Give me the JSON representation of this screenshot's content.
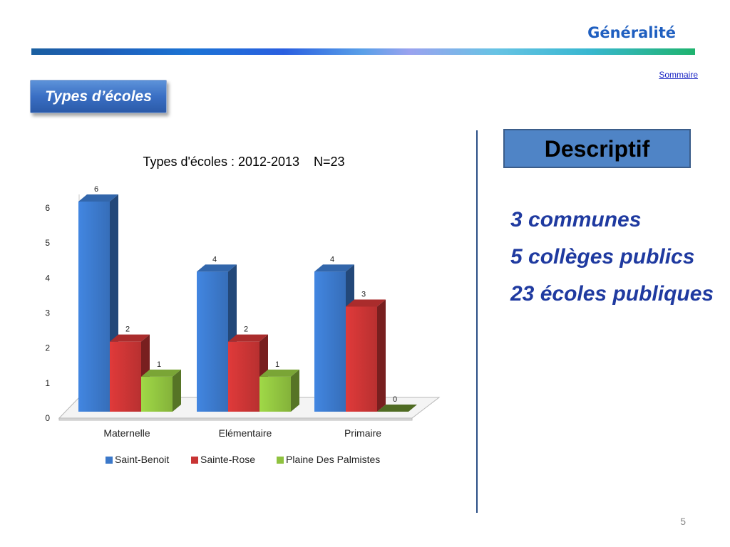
{
  "header": {
    "title": "Généralité",
    "link": "Sommaire"
  },
  "section": {
    "label": "Types d’écoles"
  },
  "descriptif": {
    "title": "Descriptif",
    "items": [
      "3 communes",
      "5 collèges publics",
      "23 écoles publiques"
    ]
  },
  "page_number": "5",
  "chart_data": {
    "type": "bar",
    "title": "Types d'écoles : 2012-2013    N=23",
    "categories": [
      "Maternelle",
      "Elémentaire",
      "Primaire"
    ],
    "series": [
      {
        "name": "Saint-Benoit",
        "values": [
          6,
          4,
          4
        ],
        "color": "#3b78c9"
      },
      {
        "name": "Sainte-Rose",
        "values": [
          2,
          2,
          3
        ],
        "color": "#c83434"
      },
      {
        "name": "Plaine Des Palmistes",
        "values": [
          1,
          1,
          0
        ],
        "color": "#8fc23f"
      }
    ],
    "ylim": [
      0,
      6
    ],
    "yticks": [
      "0",
      "1",
      "2",
      "3",
      "4",
      "5",
      "6"
    ],
    "legend": "bottom",
    "grid": false
  }
}
